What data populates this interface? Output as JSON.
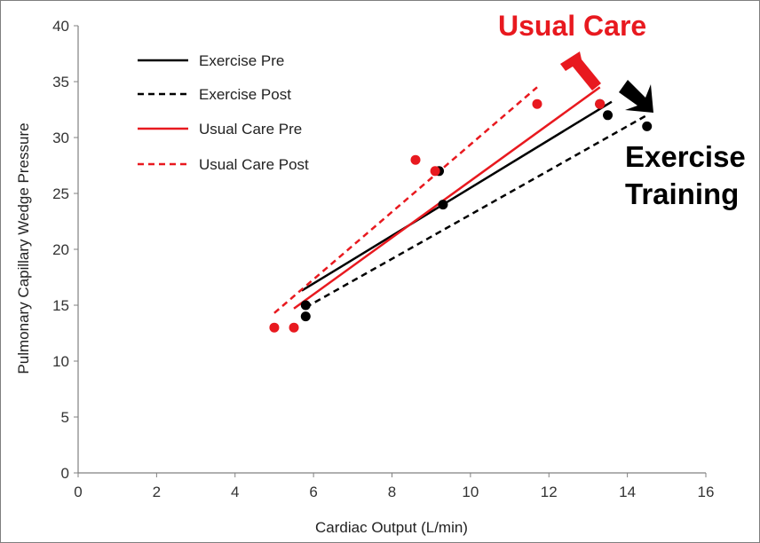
{
  "chart_data": {
    "type": "scatter",
    "title": "",
    "xlabel": "Cardiac Output (L/min)",
    "ylabel": "Pulmonary Capillary Wedge Pressure",
    "xlim": [
      0,
      16
    ],
    "ylim": [
      0,
      40
    ],
    "xticks": [
      "0",
      "2",
      "4",
      "6",
      "8",
      "10",
      "12",
      "14",
      "16"
    ],
    "yticks": [
      "0",
      "5",
      "10",
      "15",
      "20",
      "25",
      "30",
      "35",
      "40"
    ],
    "grid": false,
    "legend_position": "top-left",
    "series": [
      {
        "name": "Exercise Pre",
        "color": "#000000",
        "style": "solid",
        "points": [
          [
            5.8,
            15
          ],
          [
            9.2,
            27
          ],
          [
            13.3,
            33
          ]
        ],
        "trendline": [
          [
            5.7,
            16.3
          ],
          [
            13.6,
            33.2
          ]
        ]
      },
      {
        "name": "Exercise Post",
        "color": "#000000",
        "style": "dashed",
        "points": [
          [
            5.8,
            14
          ],
          [
            9.3,
            24
          ],
          [
            13.5,
            32
          ],
          [
            14.5,
            31
          ]
        ],
        "trendline": [
          [
            5.8,
            14.8
          ],
          [
            14.5,
            32
          ]
        ]
      },
      {
        "name": "Usual Care Pre",
        "color": "#e8191f",
        "style": "solid",
        "points": [
          [
            5.5,
            13
          ],
          [
            9.1,
            27
          ],
          [
            13.3,
            33
          ]
        ],
        "trendline": [
          [
            5.5,
            14.7
          ],
          [
            13.3,
            34.5
          ]
        ]
      },
      {
        "name": "Usual Care Post",
        "color": "#e8191f",
        "style": "dashed",
        "points": [
          [
            5.0,
            13
          ],
          [
            8.6,
            28
          ],
          [
            11.7,
            33
          ]
        ],
        "trendline": [
          [
            5.0,
            14.3
          ],
          [
            11.7,
            34.5
          ]
        ]
      }
    ],
    "annotations": {
      "usual_care": "Usual Care",
      "exercise_line1": "Exercise",
      "exercise_line2": "Training"
    }
  }
}
